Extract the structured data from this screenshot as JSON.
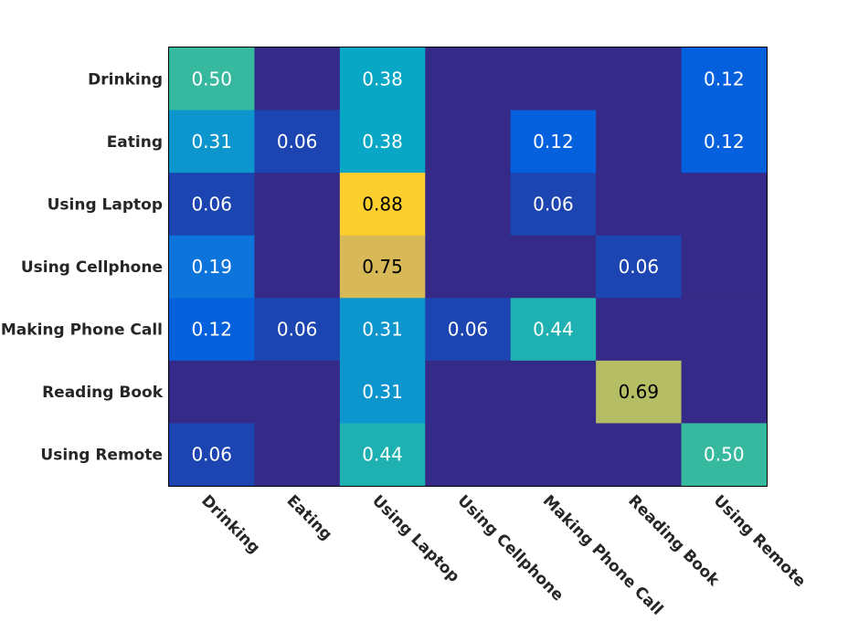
{
  "chart_data": {
    "type": "heatmap",
    "title": "",
    "xlabel": "",
    "ylabel": "",
    "rows": [
      "Drinking",
      "Eating",
      "Using Laptop",
      "Using Cellphone",
      "Making Phone Call",
      "Reading Book",
      "Using Remote"
    ],
    "columns": [
      "Drinking",
      "Eating",
      "Using Laptop",
      "Using Cellphone",
      "Making Phone Call",
      "Reading Book",
      "Using Remote"
    ],
    "values": [
      [
        0.5,
        0.0,
        0.38,
        0.0,
        0.0,
        0.0,
        0.12
      ],
      [
        0.31,
        0.06,
        0.38,
        0.0,
        0.12,
        0.0,
        0.12
      ],
      [
        0.06,
        0.0,
        0.88,
        0.0,
        0.06,
        0.0,
        0.0
      ],
      [
        0.19,
        0.0,
        0.75,
        0.0,
        0.0,
        0.06,
        0.0
      ],
      [
        0.12,
        0.06,
        0.31,
        0.06,
        0.44,
        0.0,
        0.0
      ],
      [
        0.0,
        0.0,
        0.31,
        0.0,
        0.0,
        0.69,
        0.0
      ],
      [
        0.06,
        0.0,
        0.44,
        0.0,
        0.0,
        0.0,
        0.5
      ]
    ],
    "zero_label_hidden": true,
    "value_format": "0.00",
    "color_range": [
      0.0,
      0.88
    ],
    "colormap": "parula",
    "colors": {
      "stops": [
        "#352a87",
        "#0363e1",
        "#1485d4",
        "#06a7c6",
        "#38b99e",
        "#92bf73",
        "#d9ba56",
        "#fcce2e"
      ],
      "text_light": "#ffffff",
      "text_dark": "#000000",
      "frame": "#000000",
      "axis_label": "#262626"
    }
  }
}
